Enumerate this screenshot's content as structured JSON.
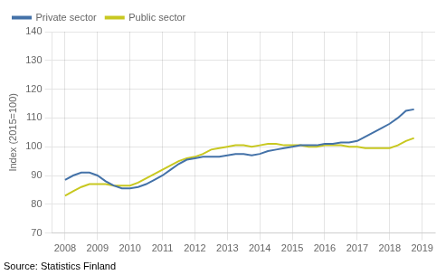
{
  "chart_data": {
    "type": "line",
    "x": [
      2008.0,
      2008.25,
      2008.5,
      2008.75,
      2009.0,
      2009.25,
      2009.5,
      2009.75,
      2010.0,
      2010.25,
      2010.5,
      2010.75,
      2011.0,
      2011.25,
      2011.5,
      2011.75,
      2012.0,
      2012.25,
      2012.5,
      2012.75,
      2013.0,
      2013.25,
      2013.5,
      2013.75,
      2014.0,
      2014.25,
      2014.5,
      2014.75,
      2015.0,
      2015.25,
      2015.5,
      2015.75,
      2016.0,
      2016.25,
      2016.5,
      2016.75,
      2017.0,
      2017.25,
      2017.5,
      2017.75,
      2018.0,
      2018.25,
      2018.5,
      2018.75
    ],
    "series": [
      {
        "name": "Private sector",
        "color": "#4472a8",
        "values": [
          88.5,
          90.0,
          91.0,
          91.0,
          90.0,
          88.0,
          86.5,
          85.5,
          85.5,
          86.0,
          87.0,
          88.5,
          90.0,
          92.0,
          94.0,
          95.5,
          96.0,
          96.5,
          96.5,
          96.5,
          97.0,
          97.5,
          97.5,
          97.0,
          97.5,
          98.5,
          99.0,
          99.5,
          100.0,
          100.5,
          100.5,
          100.5,
          101.0,
          101.0,
          101.5,
          101.5,
          102.0,
          103.5,
          105.0,
          106.5,
          108.0,
          110.0,
          112.5,
          113.0
        ]
      },
      {
        "name": "Public sector",
        "color": "#c8c820",
        "values": [
          83.0,
          84.5,
          86.0,
          87.0,
          87.0,
          87.0,
          86.5,
          86.5,
          86.5,
          87.5,
          89.0,
          90.5,
          92.0,
          93.5,
          95.0,
          96.0,
          96.5,
          97.5,
          99.0,
          99.5,
          100.0,
          100.5,
          100.5,
          100.0,
          100.5,
          101.0,
          101.0,
          100.5,
          100.5,
          100.5,
          100.0,
          100.0,
          100.5,
          100.5,
          100.5,
          100.0,
          100.0,
          99.5,
          99.5,
          99.5,
          99.5,
          100.5,
          102.0,
          103.0
        ]
      }
    ],
    "ylabel": "Index (2015=100)",
    "ylim": [
      70,
      140
    ],
    "yticks": [
      70,
      80,
      90,
      100,
      110,
      120,
      130,
      140
    ],
    "xlim": [
      2007.6,
      2019.4
    ],
    "xticks": [
      2008,
      2009,
      2010,
      2011,
      2012,
      2013,
      2014,
      2015,
      2016,
      2017,
      2018,
      2019
    ],
    "annotation": "Source: Statistics Finland",
    "grid": true,
    "legend": "upper left"
  }
}
